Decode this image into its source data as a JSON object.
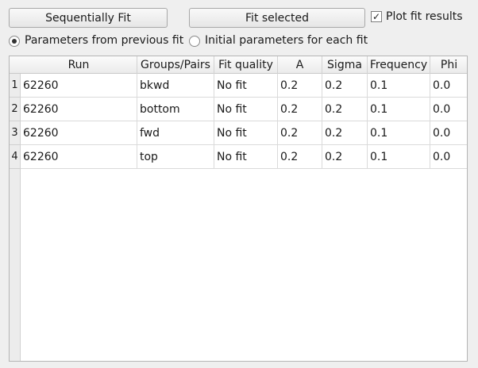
{
  "toolbar": {
    "sequential_label": "Sequentially Fit",
    "fit_selected_label": "Fit selected",
    "plot_results_label": "Plot fit results",
    "plot_results_checked": true,
    "check_glyph": "✓"
  },
  "options": {
    "previous_fit_label": "Parameters from previous fit",
    "initial_params_label": "Initial parameters for each fit",
    "selected": "previous_fit"
  },
  "table": {
    "headers": [
      "Run",
      "Groups/Pairs",
      "Fit quality",
      "A",
      "Sigma",
      "Frequency",
      "Phi"
    ],
    "rows": [
      {
        "num": "1",
        "run": "62260",
        "group": "bkwd",
        "quality": "No fit",
        "a": "0.2",
        "sigma": "0.2",
        "frequency": "0.1",
        "phi": "0.0"
      },
      {
        "num": "2",
        "run": "62260",
        "group": "bottom",
        "quality": "No fit",
        "a": "0.2",
        "sigma": "0.2",
        "frequency": "0.1",
        "phi": "0.0"
      },
      {
        "num": "3",
        "run": "62260",
        "group": "fwd",
        "quality": "No fit",
        "a": "0.2",
        "sigma": "0.2",
        "frequency": "0.1",
        "phi": "0.0"
      },
      {
        "num": "4",
        "run": "62260",
        "group": "top",
        "quality": "No fit",
        "a": "0.2",
        "sigma": "0.2",
        "frequency": "0.1",
        "phi": "0.0"
      }
    ]
  }
}
